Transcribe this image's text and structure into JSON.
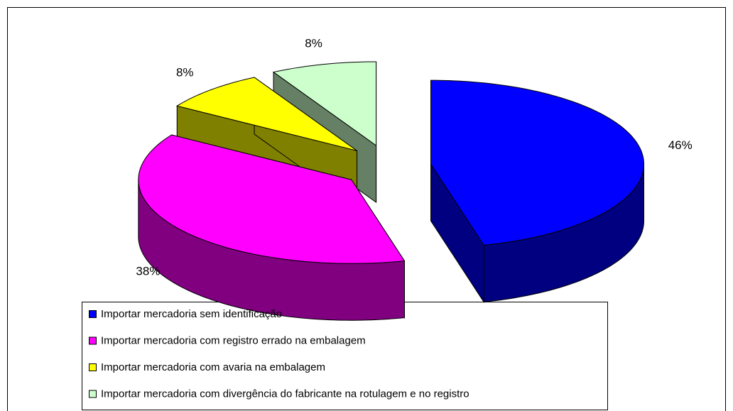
{
  "chart_data": {
    "type": "pie3d",
    "categories": [
      "Importar mercadoria sem identificação",
      "Importar mercadoria com registro errado na embalagem",
      "Importar mercadoria com avaria na embalagem",
      "Importar mercadoria com divergência do fabricante na rotulagem e no registro"
    ],
    "values": [
      46,
      38,
      8,
      8
    ],
    "value_labels": [
      "46%",
      "38%",
      "8%",
      "8%"
    ],
    "colors": [
      "#0000ff",
      "#ff00ff",
      "#ffff00",
      "#ccffcc"
    ],
    "legend": "bottom"
  }
}
